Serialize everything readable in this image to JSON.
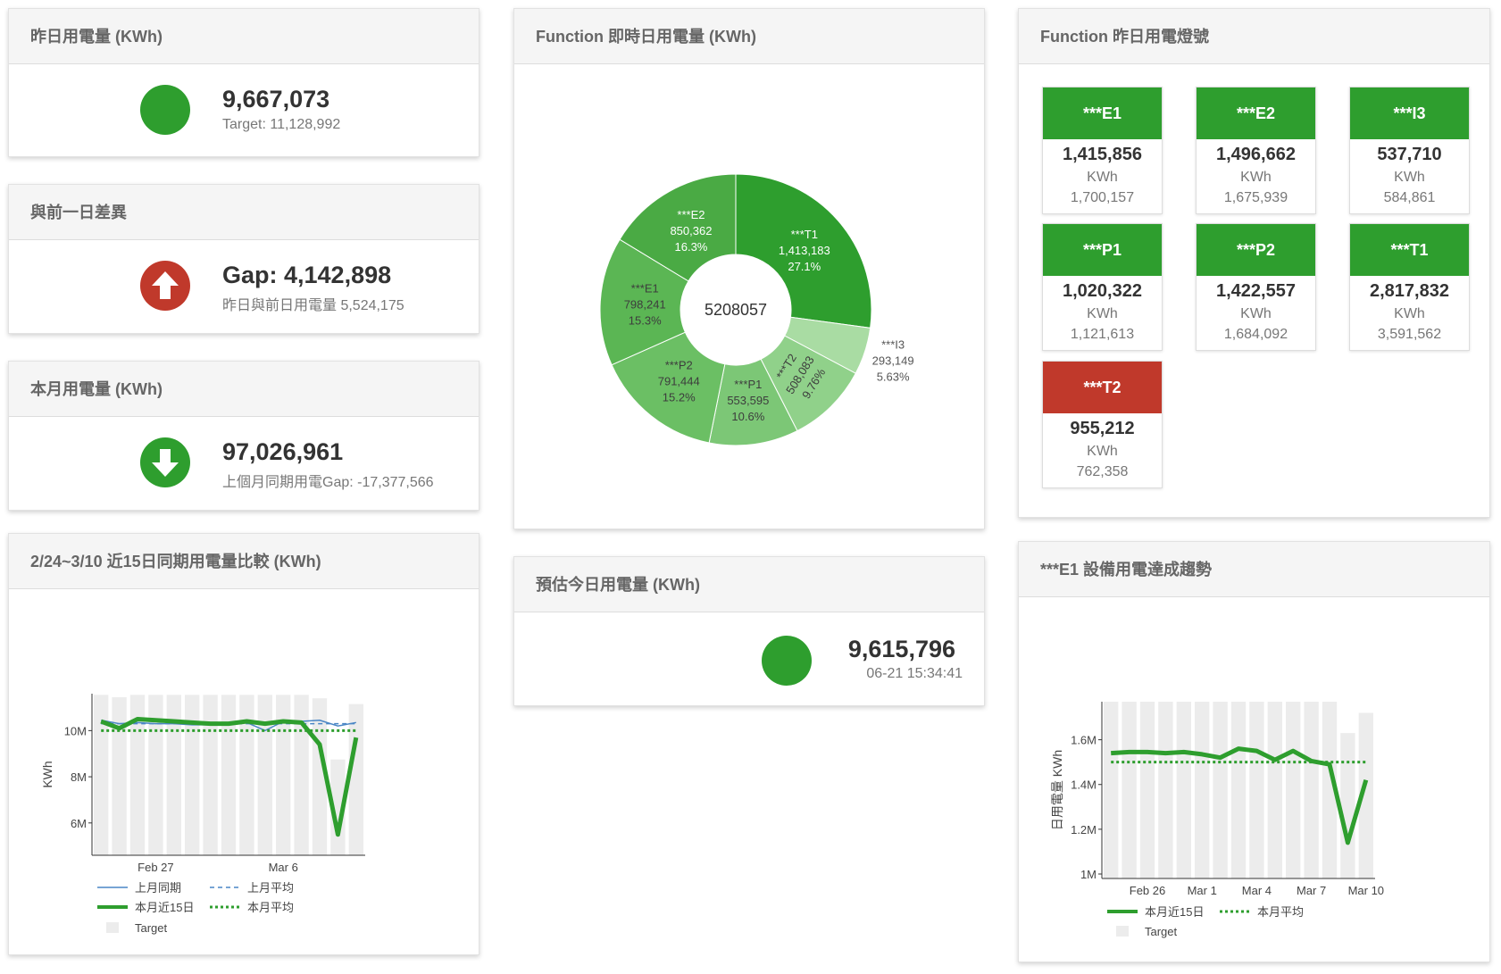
{
  "yesterday": {
    "title": "昨日用電量 (KWh)",
    "value": "9,667,073",
    "sub": "Target: 11,128,992"
  },
  "gap": {
    "title": "與前一日差異",
    "value": "Gap: 4,142,898",
    "sub": "昨日與前日用電量 5,524,175"
  },
  "month": {
    "title": "本月用電量 (KWh)",
    "value": "97,026,961",
    "sub": "上個月同期用電Gap: -17,377,566"
  },
  "trend15": {
    "title": "2/24~3/10 近15日同期用電量比較 (KWh)",
    "type": "line",
    "ylabel": "KWh",
    "categories": [
      null,
      null,
      null,
      "Feb 27",
      null,
      null,
      null,
      null,
      null,
      null,
      "Mar 6",
      null,
      null,
      null,
      null
    ],
    "ylim": [
      4600000,
      11600000
    ],
    "yticks": [
      {
        "value": 6000000,
        "label": "6M"
      },
      {
        "value": 8000000,
        "label": "8M"
      },
      {
        "value": 10000000,
        "label": "10M"
      }
    ],
    "series": [
      {
        "name": "上月同期",
        "type": "line",
        "color": "#4a86c5",
        "width": 1.5,
        "dash": "solid",
        "values": [
          10450000,
          10300000,
          10350000,
          10300000,
          10300000,
          10250000,
          10250000,
          10300000,
          10350000,
          10000000,
          10400000,
          10400000,
          10450000,
          10200000,
          10350000
        ]
      },
      {
        "name": "上月平均",
        "type": "line",
        "color": "#4a86c5",
        "width": 1.5,
        "dash": "dashed",
        "values": [
          10300000,
          10300000,
          10300000,
          10300000,
          10300000,
          10300000,
          10300000,
          10300000,
          10300000,
          10300000,
          10300000,
          10300000,
          10300000,
          10300000,
          10300000
        ]
      },
      {
        "name": "本月近15日",
        "type": "line",
        "color": "#2e9e2e",
        "width": 5,
        "dash": "solid",
        "values": [
          10400000,
          10100000,
          10500000,
          10450000,
          10400000,
          10350000,
          10300000,
          10300000,
          10400000,
          10300000,
          10400000,
          10350000,
          9400000,
          5500000,
          9700000
        ]
      },
      {
        "name": "本月平均",
        "type": "line",
        "color": "#2e9e2e",
        "width": 3,
        "dash": "dotted",
        "values": [
          10000000,
          10000000,
          10000000,
          10000000,
          10000000,
          10000000,
          10000000,
          10000000,
          10000000,
          10000000,
          10000000,
          10000000,
          10000000,
          10000000,
          10000000
        ]
      },
      {
        "name": "Target",
        "type": "bar",
        "color": "#ececec",
        "values": [
          11550000,
          11450000,
          11550000,
          11550000,
          11550000,
          11550000,
          11550000,
          11550000,
          11550000,
          11550000,
          11550000,
          11550000,
          11400000,
          8750000,
          11150000
        ]
      }
    ]
  },
  "donut": {
    "title": "Function 即時日用電量 (KWh)",
    "type": "pie",
    "center_label": "5208057",
    "categories": [
      "***T1",
      "***I3",
      "***T2",
      "***P1",
      "***P2",
      "***E1",
      "***E2"
    ],
    "values": [
      1413183,
      293149,
      508083,
      553595,
      791444,
      798241,
      850362
    ],
    "value_labels": [
      "1,413,183",
      "293,149",
      "508,083",
      "553,595",
      "791,444",
      "798,241",
      "850,362"
    ],
    "percent_labels": [
      "27.1%",
      "5.63%",
      "9.76%",
      "10.6%",
      "15.2%",
      "15.3%",
      "16.3%"
    ],
    "colors": [
      "#2e9e2e",
      "#a9dca3",
      "#90d18a",
      "#7cc776",
      "#6bbf64",
      "#5bb654",
      "#4aaa44"
    ]
  },
  "estimate": {
    "title": "預估今日用電量 (KWh)",
    "value": "9,615,796",
    "time": "06-21 15:34:41"
  },
  "lamps": {
    "title": "Function 昨日用電燈號",
    "items": [
      {
        "name": "***E1",
        "value": "1,415,856",
        "unit": "KWh",
        "target": "1,700,157",
        "color": "#2e9e2e"
      },
      {
        "name": "***E2",
        "value": "1,496,662",
        "unit": "KWh",
        "target": "1,675,939",
        "color": "#2e9e2e"
      },
      {
        "name": "***I3",
        "value": "537,710",
        "unit": "KWh",
        "target": "584,861",
        "color": "#2e9e2e"
      },
      {
        "name": "***P1",
        "value": "1,020,322",
        "unit": "KWh",
        "target": "1,121,613",
        "color": "#2e9e2e"
      },
      {
        "name": "***P2",
        "value": "1,422,557",
        "unit": "KWh",
        "target": "1,684,092",
        "color": "#2e9e2e"
      },
      {
        "name": "***T1",
        "value": "2,817,832",
        "unit": "KWh",
        "target": "3,591,562",
        "color": "#2e9e2e"
      },
      {
        "name": "***T2",
        "value": "955,212",
        "unit": "KWh",
        "target": "762,358",
        "color": "#c0392b"
      }
    ]
  },
  "e1_trend": {
    "title": "***E1 設備用電達成趨勢",
    "type": "line",
    "ylabel": "日用電量 KWh",
    "categories": [
      null,
      null,
      "Feb 26",
      null,
      null,
      "Mar 1",
      null,
      null,
      "Mar 4",
      null,
      null,
      "Mar 7",
      null,
      null,
      "Mar 10"
    ],
    "ylim": [
      980000,
      1770000
    ],
    "yticks": [
      {
        "value": 1000000,
        "label": "1M"
      },
      {
        "value": 1200000,
        "label": "1.2M"
      },
      {
        "value": 1400000,
        "label": "1.4M"
      },
      {
        "value": 1600000,
        "label": "1.6M"
      }
    ],
    "series": [
      {
        "name": "本月近15日",
        "type": "line",
        "color": "#2e9e2e",
        "width": 5,
        "dash": "solid",
        "values": [
          1540000,
          1545000,
          1545000,
          1540000,
          1545000,
          1535000,
          1520000,
          1560000,
          1550000,
          1510000,
          1550000,
          1505000,
          1490000,
          1140000,
          1420000
        ]
      },
      {
        "name": "本月平均",
        "type": "line",
        "color": "#2e9e2e",
        "width": 3,
        "dash": "dotted",
        "values": [
          1500000,
          1500000,
          1500000,
          1500000,
          1500000,
          1500000,
          1500000,
          1500000,
          1500000,
          1500000,
          1500000,
          1500000,
          1500000,
          1500000,
          1500000
        ]
      },
      {
        "name": "Target",
        "type": "bar",
        "color": "#ececec",
        "values": [
          1770000,
          1770000,
          1770000,
          1770000,
          1770000,
          1770000,
          1770000,
          1770000,
          1770000,
          1770000,
          1770000,
          1770000,
          1770000,
          1630000,
          1720000
        ]
      }
    ]
  }
}
